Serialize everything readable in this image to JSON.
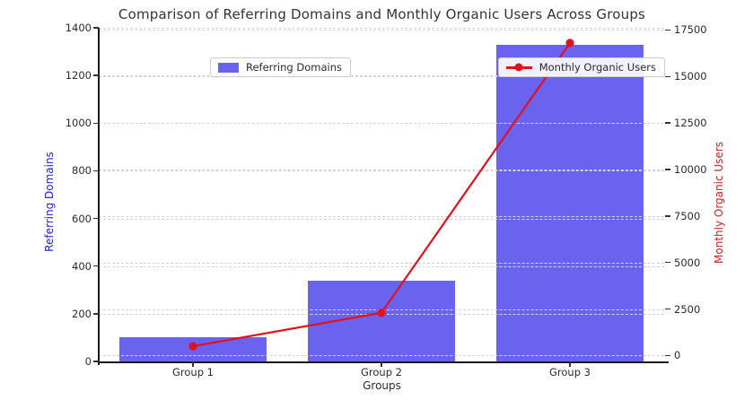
{
  "chart_data": {
    "type": "bar",
    "title": "Comparison of Referring Domains and Monthly Organic Users Across Groups",
    "categories": [
      "Group 1",
      "Group 2",
      "Group 3"
    ],
    "series": [
      {
        "name": "Referring Domains",
        "render": "bar",
        "axis": "left",
        "color": "#6a63ef",
        "values": [
          100,
          340,
          1330
        ]
      },
      {
        "name": "Monthly Organic Users",
        "render": "line",
        "axis": "right",
        "color": "#e3101e",
        "marker": "circle",
        "values": [
          500,
          2300,
          16800
        ]
      }
    ],
    "xlabel": "Groups",
    "ylabel_left": "Referring Domains",
    "ylabel_right": "Monthly Organic Users",
    "ylabel_left_color": "#2424cc",
    "ylabel_right_color": "#cc2222",
    "ylim_left": [
      0,
      1400
    ],
    "yticks_left": [
      0,
      200,
      400,
      600,
      800,
      1000,
      1200,
      1400
    ],
    "ylim_right": [
      -315,
      17615
    ],
    "yticks_right": [
      0,
      2500,
      5000,
      7500,
      10000,
      12500,
      15000,
      17500
    ],
    "grid": true,
    "grid_style": "dashed",
    "legend_left_label": "Referring Domains",
    "legend_right_label": "Monthly Organic Users",
    "legend_positions": [
      "upper left",
      "upper right"
    ]
  }
}
